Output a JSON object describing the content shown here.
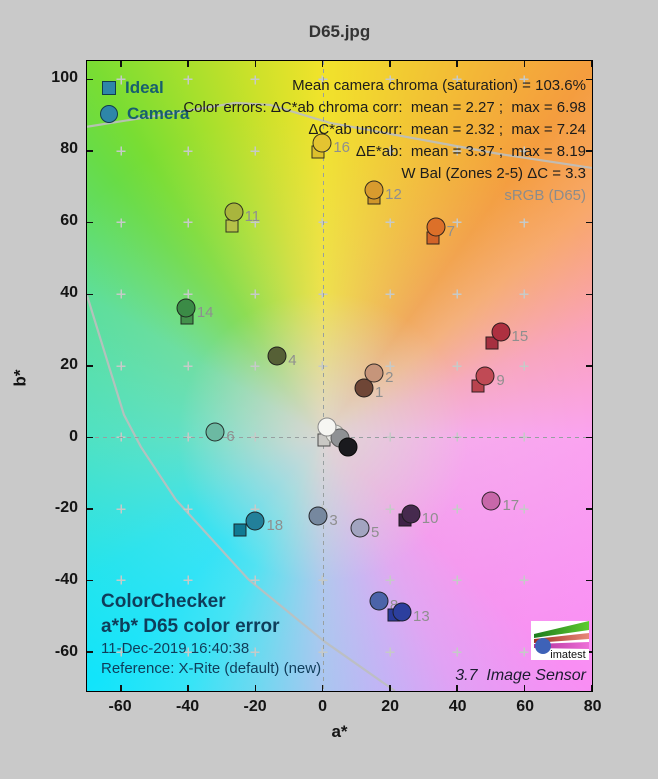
{
  "window": {
    "title": "D65.jpg"
  },
  "legend": {
    "items": [
      {
        "label": "Ideal",
        "marker": "square"
      },
      {
        "label": "Camera",
        "marker": "circle"
      }
    ],
    "marker_color": "#2e86a8"
  },
  "annotations": {
    "lines": [
      "Mean camera chroma (saturation) = 103.6%",
      "Color errors: ΔC*ab chroma corr:  mean = 2.27 ;  max = 6.98",
      "ΔC*ab uncorr:  mean = 2.32 ;  max = 7.24",
      "ΔE*ab:  mean = 3.37 ;  max = 8.19",
      "W Bal (Zones 2-5) ΔC = 3.3"
    ],
    "colorspace": "sRGB (D65)"
  },
  "info_block": {
    "title_line1": "ColorChecker",
    "title_line2": "a*b* D65 color error",
    "date": "11-Dec-2019 16:40:38",
    "reference": "Reference: X-Rite (default) (new)"
  },
  "footer": {
    "version": "3.7  Image Sensor",
    "logo_text": "imatest"
  },
  "chart_data": {
    "type": "scatter",
    "title": "D65.jpg",
    "xlabel": "a*",
    "ylabel": "b*",
    "xlim": [
      -70.1,
      80.1
    ],
    "ylim": [
      -70.9,
      105.2
    ],
    "xticks": [
      -60,
      -40,
      -20,
      0,
      20,
      40,
      60,
      80
    ],
    "yticks": [
      -60,
      -40,
      -20,
      0,
      20,
      40,
      60,
      80,
      100
    ],
    "grid_marks": {
      "a": [
        -60,
        -40,
        -20,
        0,
        20,
        40,
        60
      ],
      "b": [
        -60,
        -40,
        -20,
        0,
        20,
        40,
        60,
        80,
        100
      ]
    },
    "legend_position": "top-left",
    "grid": "plus-marks",
    "series": [
      {
        "name": "Ideal",
        "marker": "square"
      },
      {
        "name": "Camera",
        "marker": "circle"
      }
    ],
    "patches": [
      {
        "id": 1,
        "camera": {
          "a": 12.3,
          "b": 13.8
        },
        "ideal": {
          "a": 12.3,
          "b": 13.8
        },
        "color": "#6f4636",
        "ideal_color": "#6f4636"
      },
      {
        "id": 2,
        "camera": {
          "a": 15.3,
          "b": 18.0
        },
        "ideal": {
          "a": 15.3,
          "b": 18.0
        },
        "color": "#c6957a",
        "ideal_color": "#c6957a"
      },
      {
        "id": 3,
        "camera": {
          "a": -1.3,
          "b": -21.9
        },
        "ideal": {
          "a": -1.3,
          "b": -21.9
        },
        "color": "#76889f",
        "ideal_color": "#76889f"
      },
      {
        "id": 4,
        "camera": {
          "a": -13.5,
          "b": 22.7
        },
        "ideal": {
          "a": -13.5,
          "b": 22.7
        },
        "color": "#566036",
        "ideal_color": "#566036"
      },
      {
        "id": 5,
        "camera": {
          "a": 11.1,
          "b": -25.2
        },
        "ideal": {
          "a": 11.1,
          "b": -25.2
        },
        "color": "#a2a4c0",
        "ideal_color": "#a2a4c0"
      },
      {
        "id": 6,
        "camera": {
          "a": -31.9,
          "b": 1.4
        },
        "ideal": {
          "a": -31.9,
          "b": 1.4
        },
        "color": "#6cb9a2",
        "ideal_color": "#6cb9a2"
      },
      {
        "id": 7,
        "camera": {
          "a": 33.6,
          "b": 58.9
        },
        "ideal": {
          "a": 32.7,
          "b": 55.7
        },
        "color": "#dc7029",
        "ideal_color": "#d26428"
      },
      {
        "id": 8,
        "camera": {
          "a": 16.7,
          "b": -45.8
        },
        "ideal": {
          "a": 16.7,
          "b": -45.8
        },
        "color": "#4b64a9",
        "ideal_color": "#4b64a9"
      },
      {
        "id": 9,
        "camera": {
          "a": 48.4,
          "b": 17.1
        },
        "ideal": {
          "a": 46.1,
          "b": 14.3
        },
        "color": "#c04a55",
        "ideal_color": "#b9434e"
      },
      {
        "id": 10,
        "camera": {
          "a": 26.2,
          "b": -21.3
        },
        "ideal": {
          "a": 24.4,
          "b": -23.0
        },
        "color": "#462a4e",
        "ideal_color": "#3f2347"
      },
      {
        "id": 11,
        "camera": {
          "a": -26.5,
          "b": 63.1
        },
        "ideal": {
          "a": -27.1,
          "b": 59.2
        },
        "color": "#a9b53d",
        "ideal_color": "#b6c148"
      },
      {
        "id": 12,
        "camera": {
          "a": 15.3,
          "b": 69.2
        },
        "ideal": {
          "a": 15.3,
          "b": 67.0
        },
        "color": "#d89b2e",
        "ideal_color": "#d0962a"
      },
      {
        "id": 13,
        "camera": {
          "a": 23.6,
          "b": -48.9
        },
        "ideal": {
          "a": 21.2,
          "b": -49.7
        },
        "color": "#2c3f9e",
        "ideal_color": "#293a9a"
      },
      {
        "id": 14,
        "camera": {
          "a": -40.7,
          "b": 36.1
        },
        "ideal": {
          "a": -40.4,
          "b": 33.3
        },
        "color": "#3b8b46",
        "ideal_color": "#43914b"
      },
      {
        "id": 15,
        "camera": {
          "a": 52.9,
          "b": 29.4
        },
        "ideal": {
          "a": 50.5,
          "b": 26.3
        },
        "color": "#ae3040",
        "ideal_color": "#a63040"
      },
      {
        "id": 16,
        "camera": {
          "a": -0.1,
          "b": 82.3
        },
        "ideal": {
          "a": -1.3,
          "b": 79.9
        },
        "color": "#e4c431",
        "ideal_color": "#ddc02c"
      },
      {
        "id": 17,
        "camera": {
          "a": 50.2,
          "b": -17.7
        },
        "ideal": {
          "a": 50.2,
          "b": -17.7
        },
        "color": "#c767a9",
        "ideal_color": "#c767a9"
      },
      {
        "id": 18,
        "camera": {
          "a": -20.0,
          "b": -23.5
        },
        "ideal": {
          "a": -24.7,
          "b": -26.0
        },
        "color": "#22809a",
        "ideal_color": "#107a93"
      }
    ],
    "neutrals": [
      {
        "type": "square",
        "a": 0.3,
        "b": -0.8,
        "color": "#c9c8c4",
        "stroke": "#4a4a4a"
      },
      {
        "type": "circle",
        "a": 3.7,
        "b": 1.0,
        "color": "#e9e9e5",
        "stroke": "#97978f"
      },
      {
        "type": "circle",
        "a": 5.2,
        "b": -0.1,
        "color": "#8f9194",
        "stroke": "#5a5a5a"
      },
      {
        "type": "circle",
        "a": 7.6,
        "b": -2.6,
        "color": "#1a1a1e",
        "stroke": "#0a0a0a"
      },
      {
        "type": "circle",
        "a": 1.3,
        "b": 2.9,
        "color": "#f6f6f2",
        "stroke": "#8a8a8a"
      }
    ],
    "gamut_boundary": [
      [
        [
          -70.1,
          86.8
        ],
        [
          -25.9,
          93.5
        ],
        [
          -15.6,
          92.9
        ],
        [
          2.2,
          87.9
        ],
        [
          52.6,
          79.2
        ],
        [
          80.1,
          75.3
        ]
      ],
      [
        [
          -70.1,
          39.7
        ],
        [
          -59.1,
          6.3
        ],
        [
          -54.1,
          -2.6
        ],
        [
          -43.7,
          -17.4
        ],
        [
          -22.1,
          -39.7
        ],
        [
          0.7,
          -57.2
        ],
        [
          21.5,
          -70.9
        ]
      ]
    ],
    "boundary_color": "#bcbfbe"
  }
}
